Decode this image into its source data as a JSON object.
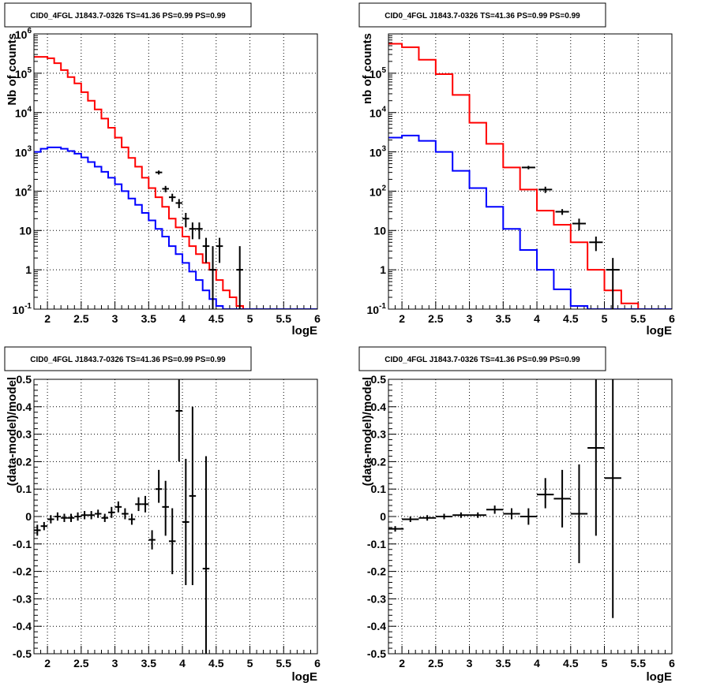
{
  "chart_data": [
    {
      "type": "line",
      "title": "CID0_4FGL J1843.7-0326 TS=41.36 PS=0.99 PS=0.99",
      "xlabel": "logE",
      "ylabel": "Nb of counts",
      "xlim": [
        1.8,
        6.0
      ],
      "ylim": [
        0.1,
        1000000
      ],
      "yscale": "log",
      "grid": true,
      "x_ticks": [
        "2",
        "2.5",
        "3",
        "3.5",
        "4",
        "4.5",
        "5",
        "5.5",
        "6"
      ],
      "y_ticks": [
        "10^-1",
        "1",
        "10",
        "10^2",
        "10^3",
        "10^4",
        "10^5",
        "10^6"
      ],
      "bin_edges": [
        1.8,
        1.9,
        2.0,
        2.1,
        2.2,
        2.3,
        2.4,
        2.5,
        2.6,
        2.7,
        2.8,
        2.9,
        3.0,
        3.1,
        3.2,
        3.3,
        3.4,
        3.5,
        3.6,
        3.7,
        3.8,
        3.9,
        4.0,
        4.1,
        4.2,
        4.3,
        4.4,
        4.5,
        4.6,
        4.7,
        4.8,
        4.9,
        5.0,
        5.1,
        5.2,
        5.3,
        5.4,
        5.5,
        5.6,
        5.7,
        5.8,
        5.9,
        6.0
      ],
      "series": [
        {
          "color": "#ff0000",
          "style": "histogram",
          "values": [
            260000,
            260000,
            240000,
            180000,
            120000,
            80000,
            55000,
            33000,
            20000,
            12000,
            7000,
            4100,
            2300,
            1300,
            700,
            420,
            220,
            120,
            70,
            40,
            20,
            12,
            7,
            4,
            2.5,
            1.5,
            1,
            0.55,
            0.3,
            0.2,
            0.12,
            0.1,
            0.1,
            0.1,
            0.1,
            0.1,
            0.1,
            0.1,
            0.1,
            0.1,
            0.1,
            0.1
          ]
        },
        {
          "color": "#0000ff",
          "style": "histogram",
          "values": [
            1000,
            1200,
            1300,
            1300,
            1200,
            1050,
            900,
            720,
            550,
            420,
            310,
            220,
            150,
            100,
            65,
            45,
            28,
            18,
            11,
            7,
            4,
            2.5,
            1.5,
            0.9,
            0.55,
            0.3,
            0.18,
            0.12,
            0.1,
            0.1,
            0.1,
            0.1,
            0.1,
            0.1,
            0.1,
            0.1,
            0.1,
            0.1,
            0.1,
            0.1,
            0.1,
            0.1
          ]
        },
        {
          "color": "#000000",
          "style": "points",
          "points": [
            {
              "x": 3.65,
              "y": 300,
              "ylo": 265,
              "yhi": 335
            },
            {
              "x": 3.75,
              "y": 115,
              "ylo": 94,
              "yhi": 136
            },
            {
              "x": 3.85,
              "y": 70,
              "ylo": 54,
              "yhi": 86
            },
            {
              "x": 3.95,
              "y": 50,
              "ylo": 37,
              "yhi": 63
            },
            {
              "x": 4.05,
              "y": 20,
              "ylo": 12,
              "yhi": 28
            },
            {
              "x": 4.15,
              "y": 11,
              "ylo": 6,
              "yhi": 16
            },
            {
              "x": 4.25,
              "y": 11,
              "ylo": 6,
              "yhi": 16
            },
            {
              "x": 4.35,
              "y": 4,
              "ylo": 1.5,
              "yhi": 6.5
            },
            {
              "x": 4.45,
              "y": 1,
              "ylo": 0.1,
              "yhi": 4
            },
            {
              "x": 4.55,
              "y": 4,
              "ylo": 1.5,
              "yhi": 6.5
            },
            {
              "x": 4.85,
              "y": 1,
              "ylo": 0.1,
              "yhi": 4
            }
          ]
        }
      ]
    },
    {
      "type": "line",
      "title": "CID0_4FGL J1843.7-0326 TS=41.36 PS=0.99 PS=0.99",
      "xlabel": "logE",
      "ylabel": "nb of counts",
      "xlim": [
        1.8,
        6.0
      ],
      "ylim": [
        0.1,
        1000000
      ],
      "yscale": "log",
      "grid": true,
      "x_ticks": [
        "2",
        "2.5",
        "3",
        "3.5",
        "4",
        "4.5",
        "5",
        "5.5",
        "6"
      ],
      "y_ticks": [
        "10^-1",
        "1",
        "10",
        "10^2",
        "10^3",
        "10^4",
        "10^5"
      ],
      "bin_edges": [
        1.8,
        2.0,
        2.25,
        2.5,
        2.75,
        3.0,
        3.25,
        3.5,
        3.75,
        4.0,
        4.25,
        4.5,
        4.75,
        5.0,
        5.25,
        5.5,
        5.75,
        6.0
      ],
      "series": [
        {
          "color": "#ff0000",
          "style": "histogram",
          "values": [
            560000,
            460000,
            220000,
            95000,
            28000,
            5500,
            1600,
            400,
            110,
            32,
            14,
            5,
            1,
            0.3,
            0.14,
            0.1,
            0.1
          ]
        },
        {
          "color": "#0000ff",
          "style": "histogram",
          "values": [
            2300,
            2600,
            1900,
            1000,
            330,
            120,
            40,
            11,
            3.2,
            1,
            0.32,
            0.12,
            0.1,
            0.1,
            0.1,
            0.1,
            0.1
          ]
        },
        {
          "color": "#000000",
          "style": "points",
          "points": [
            {
              "x": 3.875,
              "y": 400,
              "ylo": 360,
              "yhi": 440
            },
            {
              "x": 4.125,
              "y": 110,
              "ylo": 90,
              "yhi": 130
            },
            {
              "x": 4.375,
              "y": 30,
              "ylo": 25,
              "yhi": 35
            },
            {
              "x": 4.625,
              "y": 15,
              "ylo": 10,
              "yhi": 20
            },
            {
              "x": 4.875,
              "y": 5,
              "ylo": 3,
              "yhi": 7
            },
            {
              "x": 5.125,
              "y": 1,
              "ylo": 0.1,
              "yhi": 2
            }
          ]
        }
      ]
    },
    {
      "type": "scatter",
      "title": "CID0_4FGL J1843.7-0326 TS=41.36 PS=0.99 PS=0.99",
      "xlabel": "logE",
      "ylabel": "(data-model)/model",
      "xlim": [
        1.8,
        6.0
      ],
      "ylim": [
        -0.5,
        0.5
      ],
      "grid": true,
      "x_ticks": [
        "2",
        "2.5",
        "3",
        "3.5",
        "4",
        "4.5",
        "5",
        "5.5",
        "6"
      ],
      "y_ticks": [
        "-0.5",
        "-0.4",
        "-0.3",
        "-0.2",
        "-0.1",
        "0",
        "0.1",
        "0.2",
        "0.3",
        "0.4",
        "0.5"
      ],
      "series": [
        {
          "color": "#000000",
          "points": [
            {
              "x": 1.85,
              "y": -0.05,
              "ylo": -0.07,
              "yhi": -0.03
            },
            {
              "x": 1.95,
              "y": -0.035,
              "ylo": -0.05,
              "yhi": -0.02
            },
            {
              "x": 2.05,
              "y": -0.01,
              "ylo": -0.025,
              "yhi": 0.005
            },
            {
              "x": 2.15,
              "y": 0.0,
              "ylo": -0.015,
              "yhi": 0.015
            },
            {
              "x": 2.25,
              "y": -0.005,
              "ylo": -0.02,
              "yhi": 0.01
            },
            {
              "x": 2.35,
              "y": -0.005,
              "ylo": -0.02,
              "yhi": 0.01
            },
            {
              "x": 2.45,
              "y": 0.0,
              "ylo": -0.015,
              "yhi": 0.015
            },
            {
              "x": 2.55,
              "y": 0.005,
              "ylo": -0.01,
              "yhi": 0.02
            },
            {
              "x": 2.65,
              "y": 0.005,
              "ylo": -0.01,
              "yhi": 0.02
            },
            {
              "x": 2.75,
              "y": 0.01,
              "ylo": -0.005,
              "yhi": 0.025
            },
            {
              "x": 2.85,
              "y": -0.005,
              "ylo": -0.02,
              "yhi": 0.01
            },
            {
              "x": 2.95,
              "y": 0.015,
              "ylo": -0.005,
              "yhi": 0.035
            },
            {
              "x": 3.05,
              "y": 0.035,
              "ylo": 0.015,
              "yhi": 0.055
            },
            {
              "x": 3.15,
              "y": 0.01,
              "ylo": -0.01,
              "yhi": 0.03
            },
            {
              "x": 3.25,
              "y": -0.01,
              "ylo": -0.03,
              "yhi": 0.01
            },
            {
              "x": 3.35,
              "y": 0.045,
              "ylo": 0.02,
              "yhi": 0.07
            },
            {
              "x": 3.45,
              "y": 0.045,
              "ylo": 0.015,
              "yhi": 0.075
            },
            {
              "x": 3.55,
              "y": -0.085,
              "ylo": -0.12,
              "yhi": -0.05
            },
            {
              "x": 3.65,
              "y": 0.1,
              "ylo": 0.05,
              "yhi": 0.17
            },
            {
              "x": 3.75,
              "y": 0.035,
              "ylo": -0.07,
              "yhi": 0.13
            },
            {
              "x": 3.85,
              "y": -0.09,
              "ylo": -0.21,
              "yhi": 0.03
            },
            {
              "x": 3.95,
              "y": 0.385,
              "ylo": 0.2,
              "yhi": 0.5
            },
            {
              "x": 4.05,
              "y": -0.02,
              "ylo": -0.25,
              "yhi": 0.21
            },
            {
              "x": 4.15,
              "y": 0.075,
              "ylo": -0.25,
              "yhi": 0.4
            },
            {
              "x": 4.35,
              "y": -0.19,
              "ylo": -0.5,
              "yhi": 0.22
            }
          ]
        }
      ]
    },
    {
      "type": "scatter",
      "title": "CID0_4FGL J1843.7-0326 TS=41.36 PS=0.99 PS=0.99",
      "xlabel": "logE",
      "ylabel": "(data-model)/model",
      "xlim": [
        1.8,
        6.0
      ],
      "ylim": [
        -0.5,
        0.5
      ],
      "grid": true,
      "x_ticks": [
        "2",
        "2.5",
        "3",
        "3.5",
        "4",
        "4.5",
        "5",
        "5.5",
        "6"
      ],
      "y_ticks": [
        "-0.5",
        "-0.4",
        "-0.3",
        "-0.2",
        "-0.1",
        "0",
        "0.1",
        "0.2",
        "0.3",
        "0.4",
        "0.5"
      ],
      "series": [
        {
          "color": "#000000",
          "points": [
            {
              "x": 1.9,
              "y": -0.045,
              "ylo": -0.055,
              "yhi": -0.035
            },
            {
              "x": 2.125,
              "y": -0.01,
              "ylo": -0.02,
              "yhi": 0.0
            },
            {
              "x": 2.375,
              "y": -0.005,
              "ylo": -0.015,
              "yhi": 0.005
            },
            {
              "x": 2.625,
              "y": 0.0,
              "ylo": -0.01,
              "yhi": 0.01
            },
            {
              "x": 2.875,
              "y": 0.005,
              "ylo": -0.005,
              "yhi": 0.015
            },
            {
              "x": 3.125,
              "y": 0.005,
              "ylo": -0.005,
              "yhi": 0.015
            },
            {
              "x": 3.375,
              "y": 0.025,
              "ylo": 0.01,
              "yhi": 0.04
            },
            {
              "x": 3.625,
              "y": 0.01,
              "ylo": -0.01,
              "yhi": 0.03
            },
            {
              "x": 3.875,
              "y": 0.0,
              "ylo": -0.03,
              "yhi": 0.03
            },
            {
              "x": 4.125,
              "y": 0.08,
              "ylo": 0.03,
              "yhi": 0.14
            },
            {
              "x": 4.375,
              "y": 0.065,
              "ylo": -0.04,
              "yhi": 0.17
            },
            {
              "x": 4.625,
              "y": 0.01,
              "ylo": -0.17,
              "yhi": 0.19
            },
            {
              "x": 4.875,
              "y": 0.25,
              "ylo": -0.07,
              "yhi": 0.5
            },
            {
              "x": 5.125,
              "y": 0.14,
              "ylo": -0.37,
              "yhi": 0.5
            }
          ]
        }
      ]
    }
  ]
}
